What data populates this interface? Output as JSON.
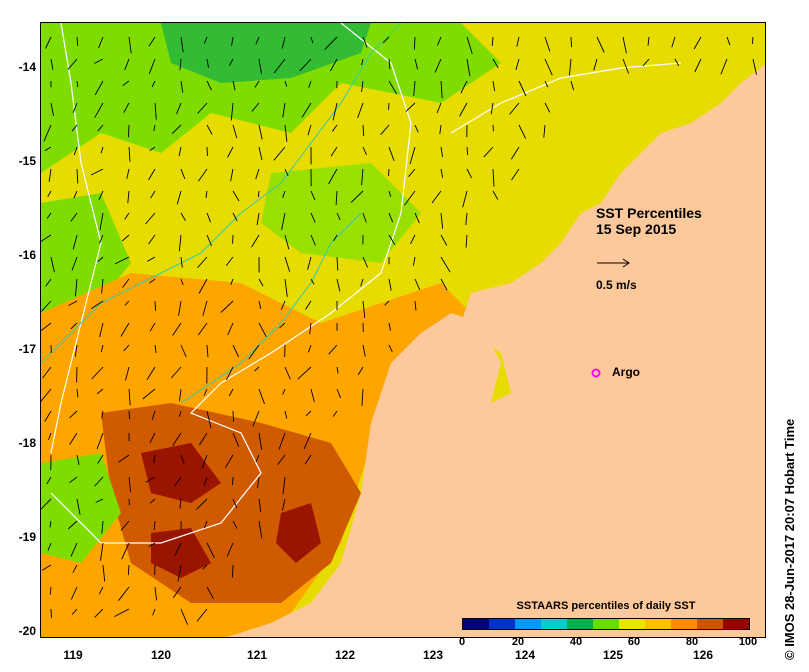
{
  "title": {
    "line1": "SST Percentiles",
    "line2": "15 Sep 2015"
  },
  "scale_arrow_label": "0.5 m/s",
  "argo_label": "Argo",
  "credit": "© IMOS 28-Jun-2017 20:07 Hobart Time",
  "colorbar": {
    "title": "SSTAARS percentiles of daily SST",
    "ticks": [
      "0",
      "20",
      "40",
      "60",
      "80",
      "100"
    ],
    "colors": [
      "#00007a",
      "#0033cc",
      "#0099ff",
      "#00cccc",
      "#00b050",
      "#66dd00",
      "#e6e600",
      "#ffc000",
      "#ff8c00",
      "#cc5500",
      "#990000"
    ]
  },
  "axes": {
    "x_ticks": [
      "119",
      "120",
      "121",
      "122",
      "123",
      "124",
      "125",
      "126"
    ],
    "y_ticks": [
      "-14",
      "-15",
      "-16",
      "-17",
      "-18",
      "-19",
      "-20"
    ]
  },
  "colors": {
    "land": "#fdc89a",
    "contour": "#ffffff",
    "bathy": "#33ccaa",
    "argo": "#ff00ff"
  }
}
